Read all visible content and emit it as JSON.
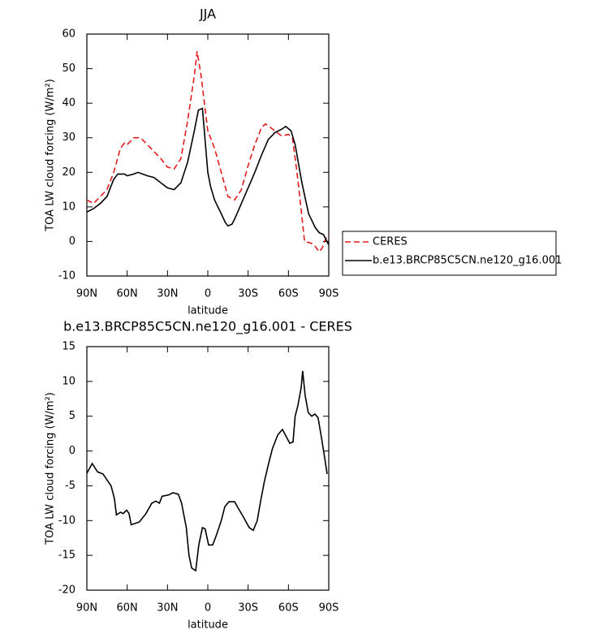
{
  "chart_data": [
    {
      "type": "line",
      "title": "JJA",
      "xlabel": "latitude",
      "ylabel": "TOA LW cloud forcing (W/m²)",
      "xlim": [
        90,
        -90
      ],
      "xticks": [
        {
          "value": 90,
          "label": "90N"
        },
        {
          "value": 60,
          "label": "60N"
        },
        {
          "value": 30,
          "label": "30N"
        },
        0,
        {
          "value": -30,
          "label": "30S"
        },
        {
          "value": -60,
          "label": "60S"
        },
        {
          "value": -90,
          "label": "90S"
        }
      ],
      "ylim": [
        -10,
        60
      ],
      "yticks": [
        -10,
        0,
        10,
        20,
        30,
        40,
        50,
        60
      ],
      "legend": "right",
      "series": [
        {
          "name": "CERES",
          "color": "#e41a1c",
          "linestyle": "dashed",
          "x": [
            90,
            85,
            80,
            75,
            70,
            65,
            62,
            60,
            55,
            50,
            45,
            40,
            35,
            30,
            25,
            20,
            15,
            10,
            8,
            5,
            0,
            -5,
            -10,
            -15,
            -20,
            -25,
            -30,
            -35,
            -40,
            -43,
            -50,
            -55,
            -60,
            -63,
            -67,
            -72,
            -77,
            -80,
            -83,
            -85,
            -88,
            -90
          ],
          "values": [
            12,
            11,
            13,
            15,
            20,
            27,
            28.5,
            28,
            30,
            30,
            28,
            26,
            24,
            21.5,
            21,
            24,
            35,
            48,
            55,
            48,
            32,
            27,
            20,
            13,
            12,
            15,
            22,
            28,
            33,
            34,
            32,
            30.5,
            31,
            30,
            18,
            0,
            -0.5,
            -1.5,
            -3,
            -2,
            1,
            2
          ]
        },
        {
          "name": "b.e13.BRCP85C5CN.ne120_g16.001",
          "color": "#000000",
          "linestyle": "solid",
          "x": [
            90,
            85,
            80,
            75,
            70,
            67,
            62,
            60,
            55,
            52,
            45,
            40,
            35,
            30,
            25,
            20,
            15,
            10,
            7,
            4,
            0,
            -2,
            -5,
            -10,
            -13,
            -15,
            -18,
            -20,
            -25,
            -30,
            -35,
            -40,
            -45,
            -50,
            -55,
            -58,
            -62,
            -65,
            -70,
            -75,
            -80,
            -83,
            -86,
            -88,
            -90
          ],
          "values": [
            8.5,
            9.5,
            11,
            13,
            18,
            19.5,
            19.5,
            19,
            19.5,
            20,
            19,
            18.5,
            17,
            15.5,
            15,
            17,
            23,
            32,
            38,
            38.5,
            20,
            16,
            12,
            8,
            5.5,
            4.5,
            5,
            6.5,
            11,
            15.5,
            20,
            25,
            29.5,
            31.5,
            32.5,
            33.3,
            32,
            28,
            17,
            8,
            4,
            2.5,
            2,
            0.5,
            -1
          ]
        }
      ]
    },
    {
      "type": "line",
      "title": "b.e13.BRCP85C5CN.ne120_g16.001 - CERES",
      "xlabel": "latitude",
      "ylabel": "TOA LW cloud forcing (W/m²)",
      "xlim": [
        90,
        -90
      ],
      "xticks": [
        {
          "value": 90,
          "label": "90N"
        },
        {
          "value": 60,
          "label": "60N"
        },
        {
          "value": 30,
          "label": "30N"
        },
        0,
        {
          "value": -30,
          "label": "30S"
        },
        {
          "value": -60,
          "label": "60S"
        },
        {
          "value": -90,
          "label": "90S"
        }
      ],
      "ylim": [
        -20,
        15
      ],
      "yticks": [
        -20,
        -15,
        -10,
        -5,
        0,
        5,
        10,
        15
      ],
      "color": "#000000",
      "x": [
        90,
        86,
        82,
        78,
        72,
        69.5,
        68,
        65,
        63,
        60.4,
        58.6,
        57,
        51,
        46,
        41.7,
        38.7,
        36,
        34,
        29,
        26,
        22,
        19.5,
        16,
        14,
        12,
        9,
        6.7,
        4,
        2,
        -0.6,
        -3.6,
        -6.6,
        -10,
        -12.7,
        -15.7,
        -20,
        -22,
        -26.5,
        -30.8,
        -33.8,
        -36.8,
        -39,
        -42,
        -45,
        -48,
        -52,
        -55.5,
        -58.5,
        -61,
        -63.4,
        -65,
        -67,
        -69.4,
        -70.6,
        -72.4,
        -74.8,
        -77.3,
        -79.7,
        -82,
        -84.5,
        -87,
        -88.8
      ],
      "values": [
        -3.2,
        -1.8,
        -3,
        -3.3,
        -5,
        -6.8,
        -9.2,
        -8.8,
        -9,
        -8.5,
        -9,
        -10.6,
        -10.2,
        -9,
        -7.5,
        -7.2,
        -7.5,
        -6.5,
        -6.3,
        -6,
        -6.2,
        -7.5,
        -11,
        -15,
        -16.8,
        -17.2,
        -13.5,
        -11,
        -11.2,
        -13.5,
        -13.5,
        -12,
        -10,
        -8,
        -7.3,
        -7.3,
        -8,
        -9.5,
        -11,
        -11.4,
        -10,
        -7.5,
        -4.5,
        -2,
        0.3,
        2.3,
        3.1,
        2,
        1.1,
        1.3,
        5,
        6.5,
        9,
        11.5,
        8,
        5.5,
        5,
        5.3,
        4.8,
        2,
        -1,
        -3.3
      ]
    }
  ]
}
